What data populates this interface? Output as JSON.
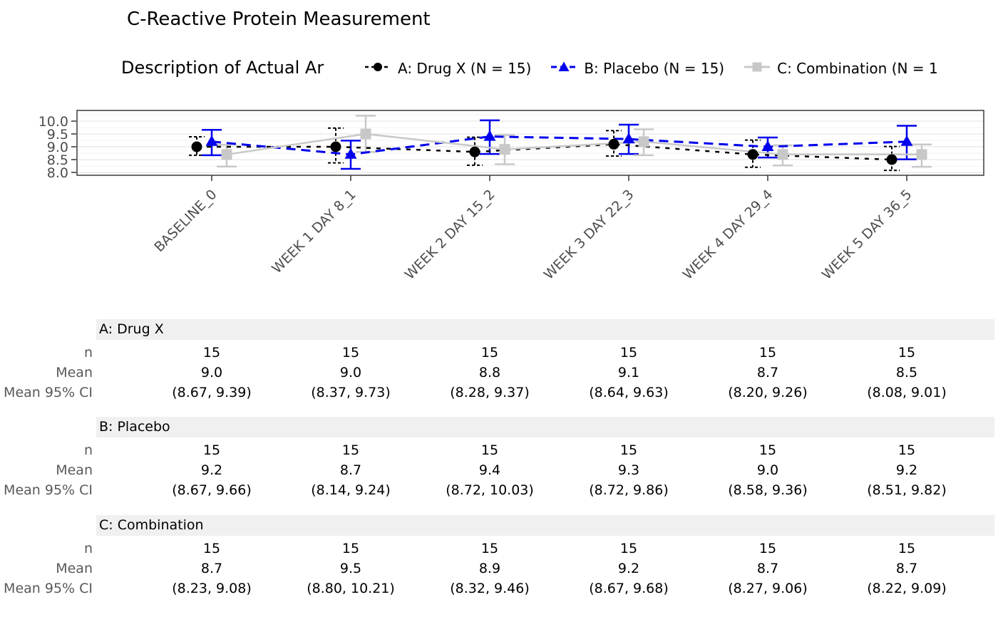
{
  "title": "C-Reactive Protein Measurement",
  "subtitle": "Description of Actual Ar",
  "colors": {
    "series_a": "#000000",
    "series_b": "#0000ee",
    "series_c": "#c8c8c8",
    "axis_text": "#4d4d4d",
    "panel_border": "#3c3c3c",
    "grid_major": "#e6e6e6",
    "grid_minor": "#f2f2f2",
    "table_band": "#f0f0f0",
    "table_label": "#595959"
  },
  "legend": {
    "items": [
      {
        "label": "A: Drug X (N = 15)",
        "marker": "circle",
        "line": "dashed"
      },
      {
        "label": "B: Placebo (N = 15)",
        "marker": "triangle",
        "line": "dashed"
      },
      {
        "label": "C: Combination (N = 1",
        "marker": "square",
        "line": "solid"
      }
    ]
  },
  "chart_data": {
    "type": "line",
    "title": "C-Reactive Protein Measurement",
    "subtitle": "Description of Actual Ar",
    "x_categories": [
      "BASELINE_0",
      "WEEK 1 DAY 8_1",
      "WEEK 2 DAY 15_2",
      "WEEK 3 DAY 22_3",
      "WEEK 4 DAY 29_4",
      "WEEK 5 DAY 36_5"
    ],
    "ylim": [
      8.0,
      10.0
    ],
    "yticks": [
      8.0,
      8.5,
      9.0,
      9.5,
      10.0
    ],
    "grid": "horizontal-only",
    "legend_position": "top",
    "series": [
      {
        "name": "A: Drug X",
        "marker": "circle",
        "line": "dashed",
        "means": [
          9.0,
          9.0,
          8.8,
          9.1,
          8.7,
          8.5
        ],
        "ci_lower": [
          8.67,
          8.37,
          8.28,
          8.64,
          8.2,
          8.08
        ],
        "ci_upper": [
          9.39,
          9.73,
          9.37,
          9.63,
          9.26,
          9.01
        ]
      },
      {
        "name": "B: Placebo",
        "marker": "triangle",
        "line": "dashed",
        "means": [
          9.2,
          8.7,
          9.4,
          9.3,
          9.0,
          9.2
        ],
        "ci_lower": [
          8.67,
          8.14,
          8.72,
          8.72,
          8.58,
          8.51
        ],
        "ci_upper": [
          9.66,
          9.24,
          10.03,
          9.86,
          9.36,
          9.82
        ]
      },
      {
        "name": "C: Combination",
        "marker": "square",
        "line": "solid",
        "means": [
          8.7,
          9.5,
          8.9,
          9.2,
          8.7,
          8.7
        ],
        "ci_lower": [
          8.23,
          8.8,
          8.32,
          8.67,
          8.27,
          8.22
        ],
        "ci_upper": [
          9.08,
          10.21,
          9.46,
          9.68,
          9.06,
          9.09
        ]
      }
    ]
  },
  "table": {
    "row_labels": [
      "n",
      "Mean",
      "Mean 95% CI"
    ],
    "sections": [
      {
        "header": "A: Drug X",
        "n": [
          "15",
          "15",
          "15",
          "15",
          "15",
          "15"
        ],
        "mean": [
          "9.0",
          "9.0",
          "8.8",
          "9.1",
          "8.7",
          "8.5"
        ],
        "ci": [
          "(8.67, 9.39)",
          "(8.37, 9.73)",
          "(8.28, 9.37)",
          "(8.64, 9.63)",
          "(8.20, 9.26)",
          "(8.08, 9.01)"
        ]
      },
      {
        "header": "B: Placebo",
        "n": [
          "15",
          "15",
          "15",
          "15",
          "15",
          "15"
        ],
        "mean": [
          "9.2",
          "8.7",
          "9.4",
          "9.3",
          "9.0",
          "9.2"
        ],
        "ci": [
          "(8.67, 9.66)",
          "(8.14, 9.24)",
          "(8.72, 10.03)",
          "(8.72, 9.86)",
          "(8.58, 9.36)",
          "(8.51, 9.82)"
        ]
      },
      {
        "header": "C: Combination",
        "n": [
          "15",
          "15",
          "15",
          "15",
          "15",
          "15"
        ],
        "mean": [
          "8.7",
          "9.5",
          "8.9",
          "9.2",
          "8.7",
          "8.7"
        ],
        "ci": [
          "(8.23, 9.08)",
          "(8.80, 10.21)",
          "(8.32, 9.46)",
          "(8.67, 9.68)",
          "(8.27, 9.06)",
          "(8.22, 9.09)"
        ]
      }
    ]
  }
}
